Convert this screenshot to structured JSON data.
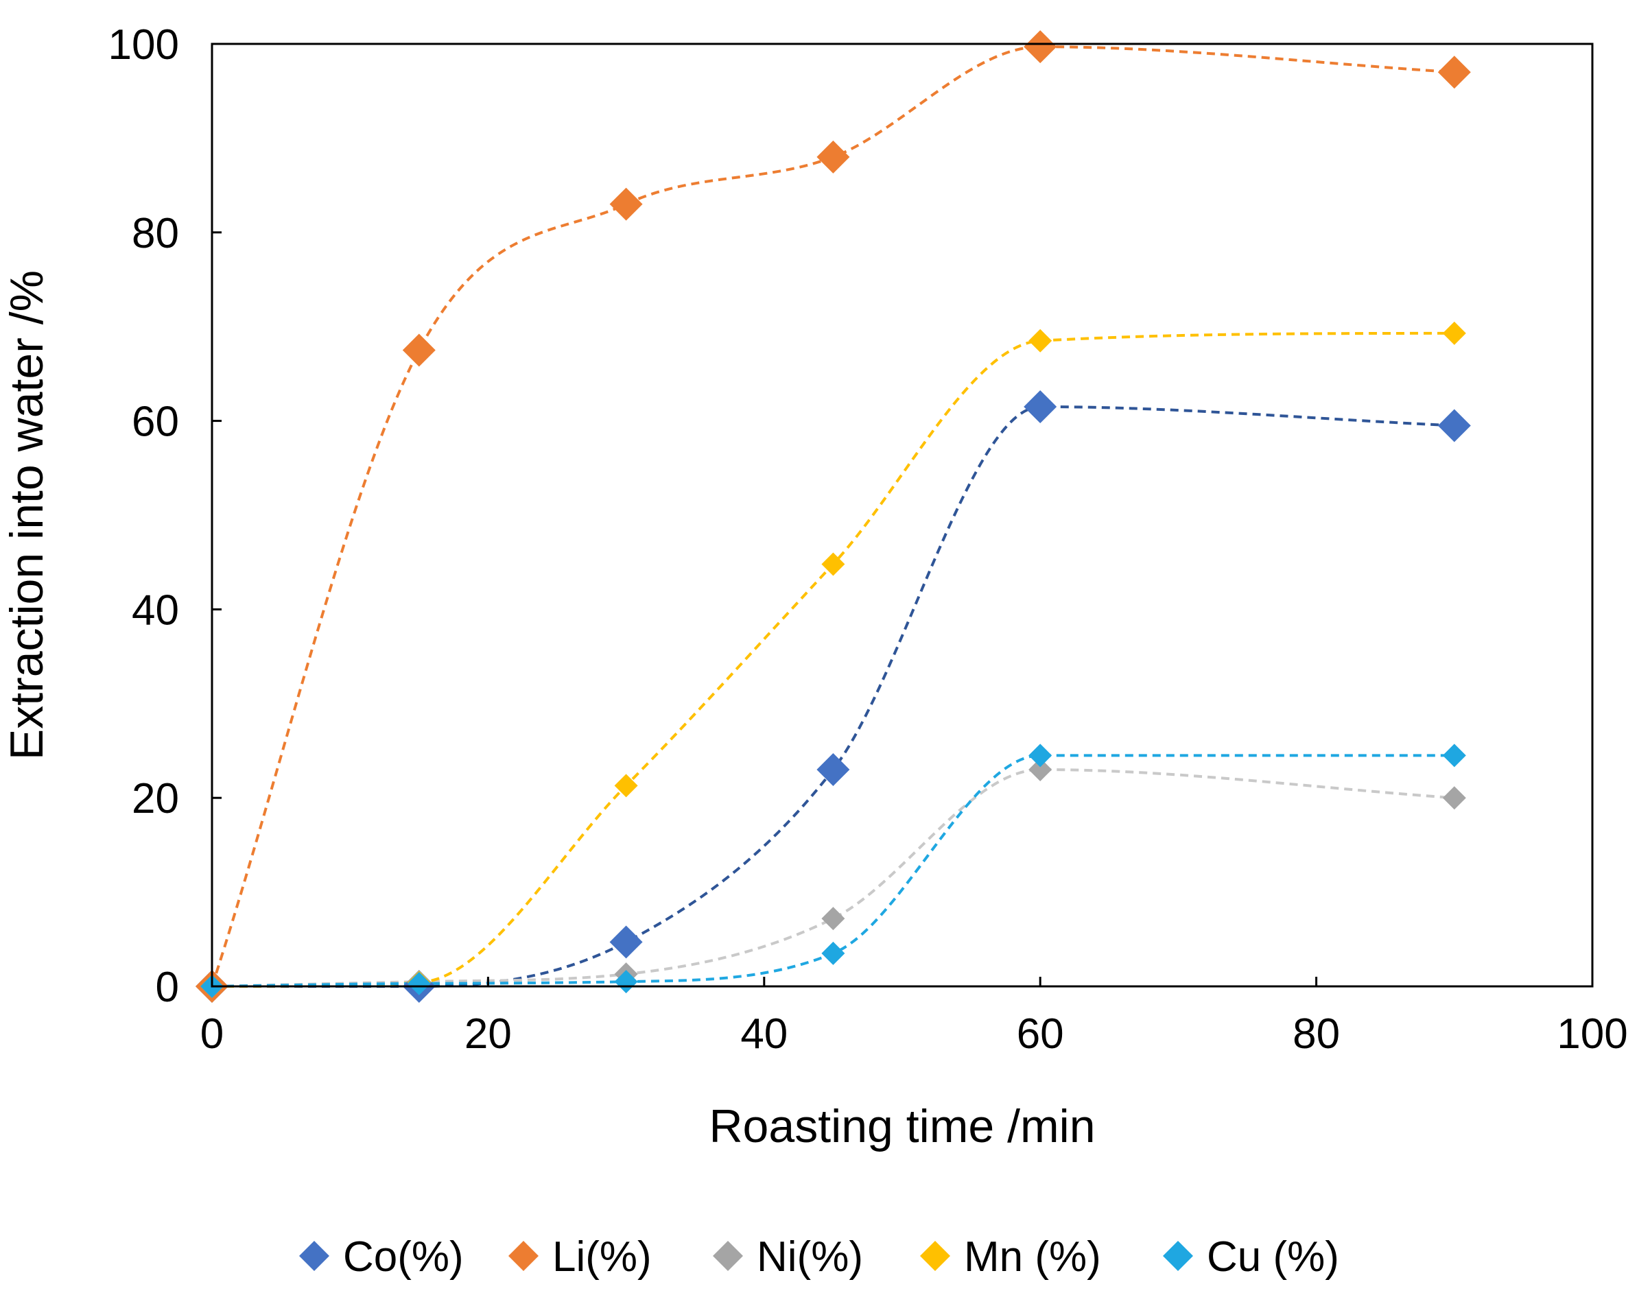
{
  "chart_data": {
    "type": "scatter",
    "title": "",
    "xlabel": "Roasting time /min",
    "ylabel": "Extraction into water /%",
    "xlim": [
      0,
      100
    ],
    "ylim": [
      0,
      100
    ],
    "xticks": [
      0,
      20,
      40,
      60,
      80,
      100
    ],
    "yticks": [
      0,
      20,
      40,
      60,
      80,
      100
    ],
    "grid": false,
    "legend_position": "bottom",
    "trendline_style": "dashed-smooth",
    "series": [
      {
        "name": "Co(%)",
        "color": "#4472C4",
        "line_color": "#2F5597",
        "marker": "diamond-large",
        "x": [
          0,
          15,
          30,
          45,
          60,
          90
        ],
        "values": [
          0,
          0,
          4.7,
          23,
          61.5,
          59.5
        ]
      },
      {
        "name": "Li(%)",
        "color": "#ED7D31",
        "line_color": "#ED7D31",
        "marker": "diamond-large",
        "x": [
          0,
          15,
          30,
          45,
          60,
          90
        ],
        "values": [
          0,
          67.5,
          83,
          88,
          99.7,
          97
        ]
      },
      {
        "name": "Ni(%)",
        "color": "#A5A5A5",
        "line_color": "#C9C9C9",
        "marker": "diamond-small",
        "x": [
          0,
          15,
          30,
          45,
          60,
          90
        ],
        "values": [
          0,
          0.5,
          1.3,
          7.2,
          23,
          20
        ]
      },
      {
        "name": "Mn (%)",
        "color": "#FFC000",
        "line_color": "#FFC000",
        "marker": "diamond-small",
        "x": [
          0,
          15,
          30,
          45,
          60,
          90
        ],
        "values": [
          0,
          0.4,
          21.3,
          44.8,
          68.5,
          69.3
        ]
      },
      {
        "name": "Cu (%)",
        "color": "#1FA7E1",
        "line_color": "#1FA7E1",
        "marker": "diamond-small",
        "x": [
          0,
          15,
          30,
          45,
          60,
          90
        ],
        "values": [
          0,
          0.3,
          0.5,
          3.5,
          24.5,
          24.5
        ]
      }
    ]
  }
}
